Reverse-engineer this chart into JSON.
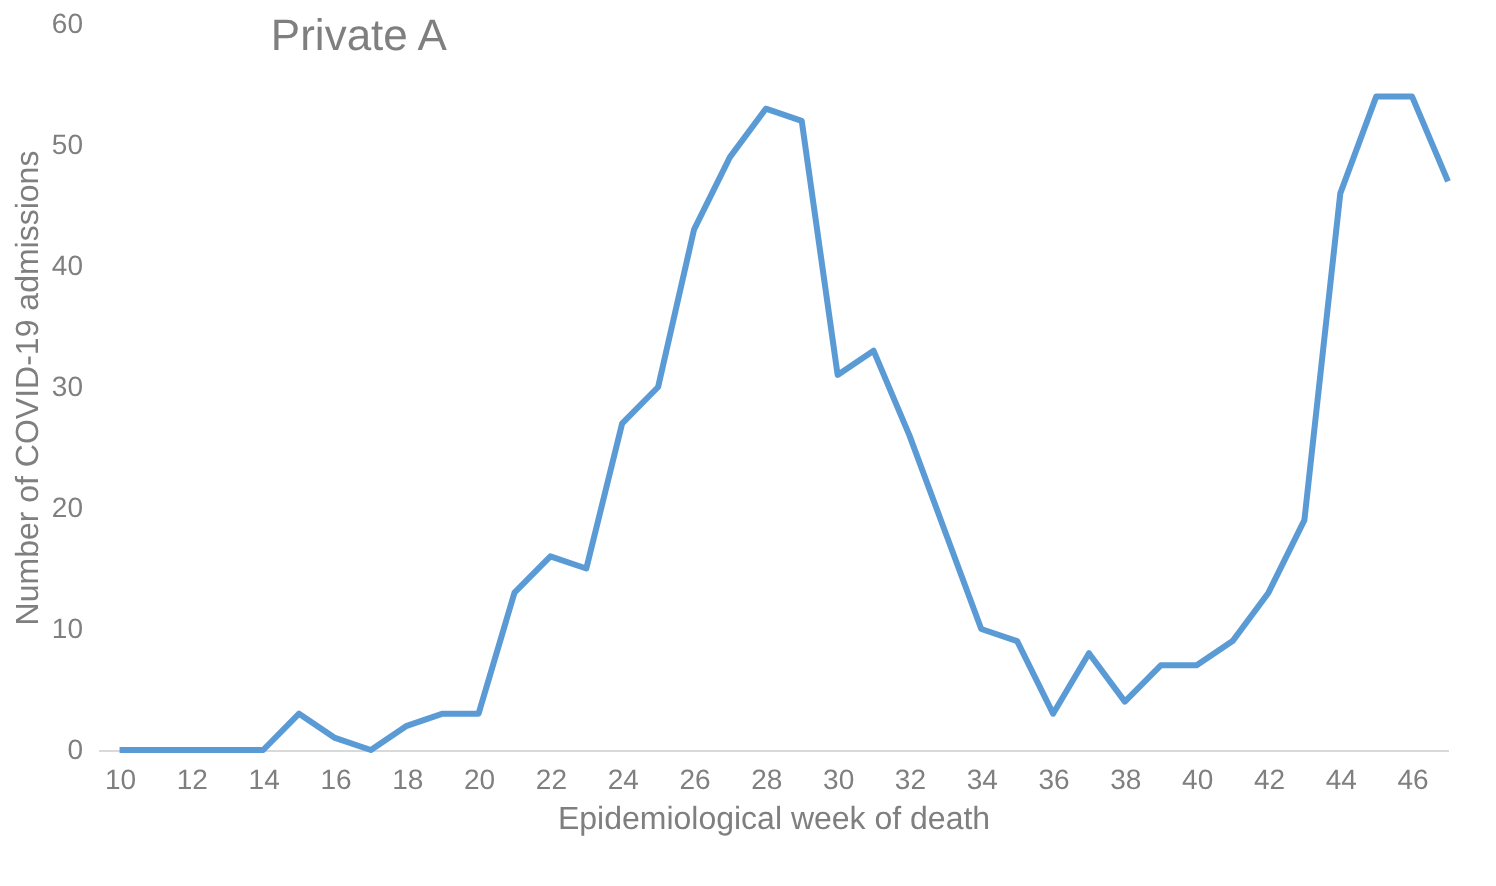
{
  "chart_data": {
    "type": "line",
    "title": "Private A",
    "xlabel": "Epidemiological week of death",
    "ylabel": "Number of COVID-19 admissions",
    "x": [
      10,
      11,
      12,
      13,
      14,
      15,
      16,
      17,
      18,
      19,
      20,
      21,
      22,
      23,
      24,
      25,
      26,
      27,
      28,
      29,
      30,
      31,
      32,
      33,
      34,
      35,
      36,
      37,
      38,
      39,
      40,
      41,
      42,
      43,
      44,
      45,
      46,
      47
    ],
    "series": [
      {
        "color": "#5b9bd5",
        "values": [
          0,
          0,
          0,
          0,
          0,
          3,
          1,
          0,
          2,
          3,
          3,
          13,
          16,
          15,
          27,
          30,
          43,
          49,
          53,
          52,
          31,
          33,
          26,
          18,
          10,
          9,
          3,
          8,
          4,
          7,
          7,
          9,
          13,
          19,
          46,
          54,
          54,
          47
        ]
      }
    ],
    "xlim": [
      9.4,
      47
    ],
    "xticks": [
      10,
      12,
      14,
      16,
      18,
      20,
      22,
      24,
      26,
      28,
      30,
      32,
      34,
      36,
      38,
      40,
      42,
      44,
      46
    ],
    "ylim": [
      0,
      60
    ],
    "yticks": [
      0,
      10,
      20,
      30,
      40,
      50,
      60
    ],
    "grid": false,
    "marker": "none",
    "line_style": "solid"
  }
}
